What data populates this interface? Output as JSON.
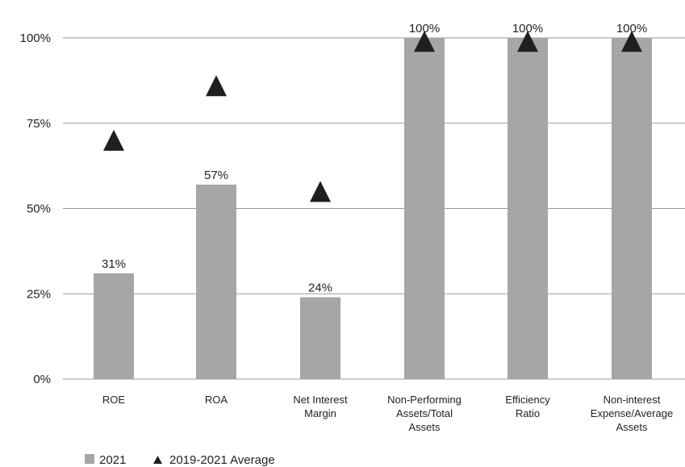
{
  "chart_data": {
    "type": "bar",
    "categories": [
      [
        "ROE"
      ],
      [
        "ROA"
      ],
      [
        "Net Interest",
        "Margin"
      ],
      [
        "Non-Performing",
        "Assets/Total",
        "Assets"
      ],
      [
        "Efficiency",
        "Ratio"
      ],
      [
        "Non-interest",
        "Expense/Average",
        "Assets"
      ]
    ],
    "series": [
      {
        "name": "2021",
        "marker": "bar",
        "color": "#a6a6a6",
        "values": [
          31,
          57,
          24,
          100,
          100,
          100
        ]
      },
      {
        "name": "2019-2021 Average",
        "marker": "triangle",
        "color": "#1f1f1f",
        "values": [
          70,
          86,
          55,
          99,
          99,
          99
        ]
      }
    ],
    "data_labels": [
      "31%",
      "57%",
      "24%",
      "100%",
      "100%",
      "100%"
    ],
    "yticks": [
      0,
      25,
      50,
      75,
      100
    ],
    "ytick_labels": [
      "0%",
      "25%",
      "50%",
      "75%",
      "100%"
    ],
    "ylim": [
      0,
      100
    ],
    "grid": true,
    "legend": {
      "position": "bottom-left",
      "items": [
        {
          "label": "2021",
          "symbol": "square"
        },
        {
          "label": "2019-2021 Average",
          "symbol": "triangle"
        }
      ]
    }
  }
}
